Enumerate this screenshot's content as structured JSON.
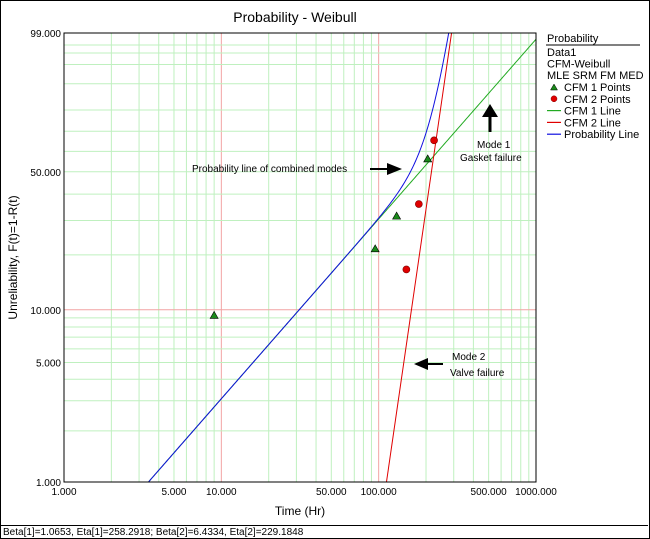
{
  "window": {
    "title": "Probability - Weibull"
  },
  "chart_data": {
    "type": "scatter",
    "title": "Probability - Weibull",
    "xlabel": "Time (Hr)",
    "ylabel": "Unreliability, F(t)=1-R(t)",
    "x_scale": "log",
    "y_scale": "weibull",
    "xlim": [
      1,
      1000
    ],
    "ylim": [
      1,
      99
    ],
    "x_ticks": [
      "1.000",
      "5.000",
      "10.000",
      "50.000",
      "100.000",
      "500.000",
      "1000.000"
    ],
    "y_ticks": [
      "1.000",
      "5.000",
      "10.000",
      "50.000",
      "99.000"
    ],
    "grid": true,
    "legend": {
      "heading": "Probability",
      "info": [
        "Data1",
        "CFM-Weibull",
        "MLE SRM FM MED"
      ],
      "entries": [
        {
          "label": "CFM 1 Points",
          "marker": "triangle",
          "color": "#1a8a1a"
        },
        {
          "label": "CFM 2 Points",
          "marker": "circle",
          "color": "#e00000"
        },
        {
          "label": "CFM 1 Line",
          "marker": "line",
          "color": "#22aa22"
        },
        {
          "label": "CFM 2 Line",
          "marker": "line",
          "color": "#e00000"
        },
        {
          "label": "Probability Line",
          "marker": "line",
          "color": "#1010e0"
        }
      ]
    },
    "series": [
      {
        "name": "CFM 1 Points",
        "points": [
          [
            9.0,
            9.3
          ],
          [
            95,
            21.5
          ],
          [
            130,
            31.5
          ],
          [
            205,
            56.2
          ]
        ]
      },
      {
        "name": "CFM 2 Points",
        "points": [
          [
            150,
            16.7
          ],
          [
            180,
            36
          ],
          [
            225,
            65.5
          ]
        ]
      },
      {
        "name": "CFM 1 Line",
        "beta": 1.0653,
        "eta": 258.2918
      },
      {
        "name": "CFM 2 Line",
        "beta": 6.4334,
        "eta": 229.1848
      },
      {
        "name": "Probability Line",
        "beta1": 1.0653,
        "eta1": 258.2918,
        "beta2": 6.4334,
        "eta2": 229.1848
      }
    ],
    "annotations": [
      {
        "text": "Probability line of combined modes",
        "at": [
          3.3,
          46
        ],
        "arrow": "right"
      },
      {
        "text": "Mode 1",
        "line2": "Gasket failure",
        "at": [
          470,
          64
        ],
        "arrow": "up"
      },
      {
        "text": "Mode 2",
        "line2": "Valve failure",
        "at": [
          120,
          4.6
        ],
        "arrow": "left"
      }
    ],
    "footer": "Beta[1]=1.0653, Eta[1]=258.2918; Beta[2]=6.4334, Eta[2]=229.1848"
  }
}
